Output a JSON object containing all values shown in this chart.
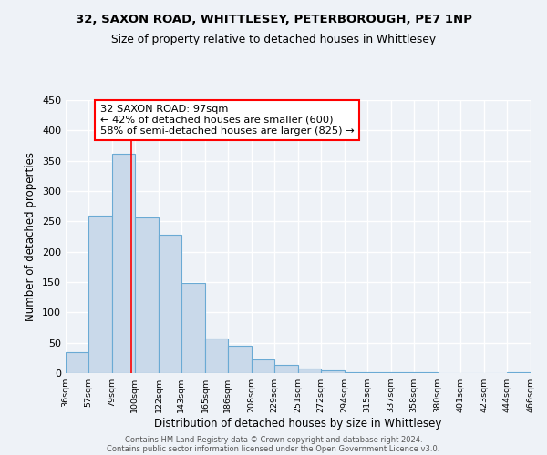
{
  "title1": "32, SAXON ROAD, WHITTLESEY, PETERBOROUGH, PE7 1NP",
  "title2": "Size of property relative to detached houses in Whittlesey",
  "xlabel": "Distribution of detached houses by size in Whittlesey",
  "ylabel": "Number of detached properties",
  "bin_edges": [
    36,
    57,
    79,
    100,
    122,
    143,
    165,
    186,
    208,
    229,
    251,
    272,
    294,
    315,
    337,
    358,
    380,
    401,
    423,
    444,
    466
  ],
  "bar_heights": [
    35,
    260,
    362,
    257,
    228,
    148,
    57,
    45,
    22,
    13,
    8,
    5,
    2,
    1,
    1,
    1,
    0,
    0,
    0,
    1
  ],
  "bar_color": "#c9d9ea",
  "bar_edge_color": "#6aaad4",
  "red_line_x": 97,
  "annotation_line1": "32 SAXON ROAD: 97sqm",
  "annotation_line2": "← 42% of detached houses are smaller (600)",
  "annotation_line3": "58% of semi-detached houses are larger (825) →",
  "ylim": [
    0,
    450
  ],
  "xlim": [
    36,
    466
  ],
  "footer1": "Contains HM Land Registry data © Crown copyright and database right 2024.",
  "footer2": "Contains public sector information licensed under the Open Government Licence v3.0.",
  "background_color": "#eef2f7",
  "plot_bg_color": "#eef2f7",
  "grid_color": "#ffffff"
}
